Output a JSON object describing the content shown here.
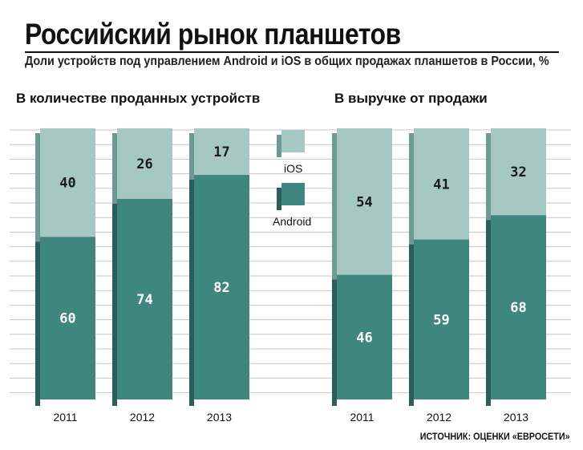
{
  "header": {
    "title": "Российский рынок планшетов",
    "subtitle": "Доли устройств под управлением Android и iOS в общих продажах планшетов в России, %"
  },
  "source": "ИСТОЧНИК: ОЦЕНКИ «ЕВРОСЕТИ»",
  "colors": {
    "android": "#3f877e",
    "android_dark": "#2a5f59",
    "ios": "#a6c8c3",
    "ios_dark": "#6e9a94"
  },
  "chart_data": [
    {
      "type": "bar",
      "stacked": true,
      "title": "В количестве проданных устройств",
      "categories": [
        "2011",
        "2012",
        "2013"
      ],
      "series": [
        {
          "name": "Android",
          "values": [
            60,
            74,
            82
          ]
        },
        {
          "name": "iOS",
          "values": [
            40,
            26,
            17
          ]
        }
      ],
      "ylim": [
        0,
        100
      ]
    },
    {
      "type": "bar",
      "stacked": true,
      "title": "В выручке от продажи",
      "categories": [
        "2011",
        "2012",
        "2013"
      ],
      "series": [
        {
          "name": "Android",
          "values": [
            46,
            59,
            68
          ]
        },
        {
          "name": "iOS",
          "values": [
            54,
            41,
            32
          ]
        }
      ],
      "ylim": [
        0,
        100
      ]
    }
  ],
  "legend": {
    "ios": "iOS",
    "android": "Android"
  }
}
